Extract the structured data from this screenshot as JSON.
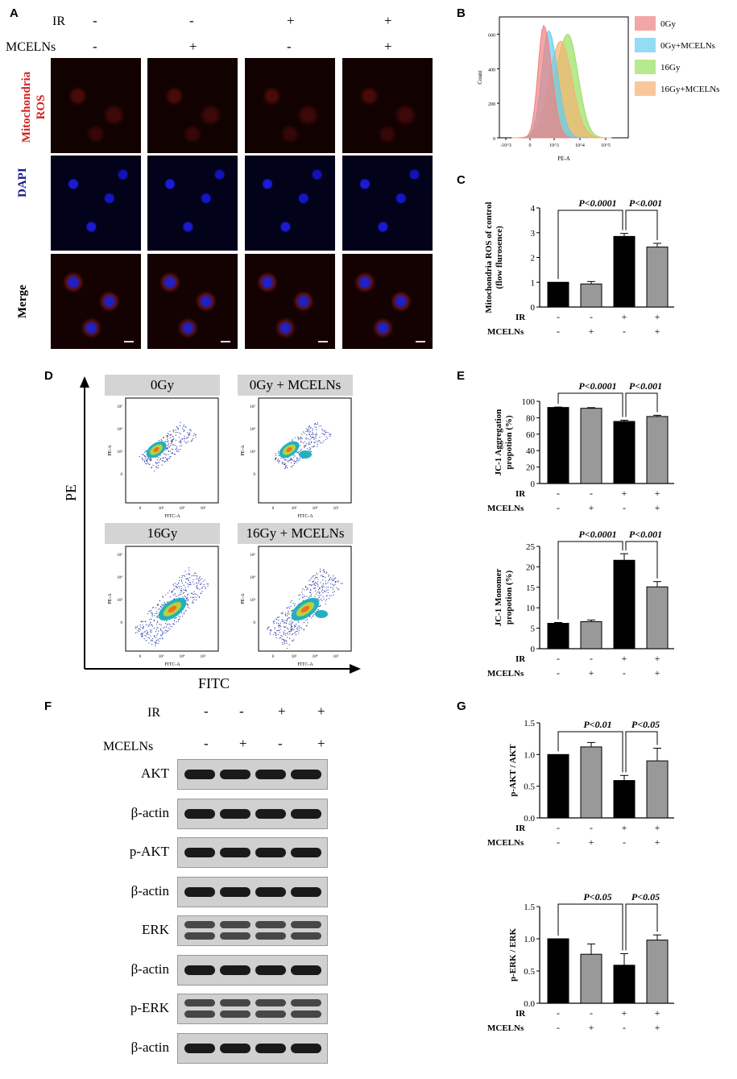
{
  "panels": {
    "A": "A",
    "B": "B",
    "C": "C",
    "D": "D",
    "E": "E",
    "F": "F",
    "G": "G"
  },
  "panelA": {
    "ir_label": "IR",
    "mcelns_label": "MCELNs",
    "ir_values": [
      "-",
      "-",
      "+",
      "+"
    ],
    "mcelns_values": [
      "-",
      "+",
      "-",
      "+"
    ],
    "row_labels": [
      "Mitochondria\nROS",
      "DAPI",
      "Merge"
    ],
    "row_label_colors": [
      "#d62020",
      "#1a1a8c",
      "#000000"
    ]
  },
  "panelD": {
    "titles": [
      "0Gy",
      "0Gy + MCELNs",
      "16Gy",
      "16Gy + MCELNs"
    ],
    "y_axis": "PE",
    "x_axis": "FITC",
    "plot_x_label": "FITC-A",
    "plot_y_label": "PE-A"
  },
  "panelF": {
    "ir_label": "IR",
    "mcelns_label": "MCELNs",
    "ir_values": [
      "-",
      "-",
      "+",
      "+"
    ],
    "mcelns_values": [
      "-",
      "+",
      "-",
      "+"
    ],
    "blots": [
      "AKT",
      "β-actin",
      "p-AKT",
      "β-actin",
      "ERK",
      "β-actin",
      "p-ERK",
      "β-actin"
    ]
  },
  "chart_data": [
    {
      "id": "B",
      "type": "area",
      "xlabel": "PE-A",
      "ylabel": "Count",
      "ylim": [
        0,
        700
      ],
      "yticks": [
        "0",
        "200",
        "400",
        "600"
      ],
      "xticks": [
        "-10^3",
        "0",
        "10^3",
        "10^4",
        "10^5"
      ],
      "legend_position": "right",
      "series": [
        {
          "name": "0Gy",
          "color": "#f08080"
        },
        {
          "name": "0Gy+MCELNs",
          "color": "#66ccee"
        },
        {
          "name": "16Gy",
          "color": "#99e060"
        },
        {
          "name": "16Gy+MCELNs",
          "color": "#f5b070"
        }
      ]
    },
    {
      "id": "C",
      "type": "bar",
      "ylabel": "Mitochondria ROS of control (flow flurosence)",
      "ylim": [
        0,
        4
      ],
      "yticks": [
        "0",
        "1",
        "2",
        "3",
        "4"
      ],
      "values": [
        1.0,
        0.93,
        2.85,
        2.42
      ],
      "errors": [
        0.0,
        0.1,
        0.12,
        0.15
      ],
      "colors": [
        "#000000",
        "#999999",
        "#000000",
        "#999999"
      ],
      "sig": [
        "P<0.0001",
        "P<0.001"
      ],
      "ir": [
        "-",
        "-",
        "+",
        "+"
      ],
      "mcelns": [
        "-",
        "+",
        "-",
        "+"
      ],
      "row_labels": [
        "IR",
        "MCELNs"
      ]
    },
    {
      "id": "E1",
      "type": "bar",
      "ylabel": "JC-1 Aggregation propotion (%)",
      "ylim": [
        0,
        100
      ],
      "yticks": [
        "0",
        "20",
        "40",
        "60",
        "80",
        "100"
      ],
      "values": [
        92.5,
        91.5,
        75.5,
        81.5
      ],
      "errors": [
        0.5,
        0.8,
        1.5,
        1.5
      ],
      "colors": [
        "#000000",
        "#999999",
        "#000000",
        "#999999"
      ],
      "sig": [
        "P<0.0001",
        "P<0.001"
      ],
      "ir": [
        "-",
        "-",
        "+",
        "+"
      ],
      "mcelns": [
        "-",
        "+",
        "-",
        "+"
      ],
      "row_labels": [
        "IR",
        "MCELNs"
      ]
    },
    {
      "id": "E2",
      "type": "bar",
      "ylabel": "JC-1 Monomer propotion (%)",
      "ylim": [
        0,
        25
      ],
      "yticks": [
        "0",
        "5",
        "10",
        "15",
        "20",
        "25"
      ],
      "values": [
        6.2,
        6.6,
        21.6,
        15.1
      ],
      "errors": [
        0.2,
        0.4,
        1.6,
        1.3
      ],
      "colors": [
        "#000000",
        "#999999",
        "#000000",
        "#999999"
      ],
      "sig": [
        "P<0.0001",
        "P<0.001"
      ],
      "ir": [
        "-",
        "-",
        "+",
        "+"
      ],
      "mcelns": [
        "-",
        "+",
        "-",
        "+"
      ],
      "row_labels": [
        "IR",
        "MCELNs"
      ]
    },
    {
      "id": "G1",
      "type": "bar",
      "ylabel": "p-AKT / AKT",
      "ylim": [
        0,
        1.5
      ],
      "yticks": [
        "0.0",
        "0.5",
        "1.0",
        "1.5"
      ],
      "values": [
        1.0,
        1.12,
        0.59,
        0.9
      ],
      "errors": [
        0.0,
        0.07,
        0.08,
        0.2
      ],
      "colors": [
        "#000000",
        "#999999",
        "#000000",
        "#999999"
      ],
      "sig": [
        "P<0.01",
        "P<0.05"
      ],
      "ir": [
        "-",
        "-",
        "+",
        "+"
      ],
      "mcelns": [
        "-",
        "+",
        "-",
        "+"
      ],
      "row_labels": [
        "IR",
        "MCELNs"
      ]
    },
    {
      "id": "G2",
      "type": "bar",
      "ylabel": "p-ERK / ERK",
      "ylim": [
        0,
        1.5
      ],
      "yticks": [
        "0.0",
        "0.5",
        "1.0",
        "1.5"
      ],
      "values": [
        1.0,
        0.76,
        0.59,
        0.98
      ],
      "errors": [
        0.0,
        0.16,
        0.18,
        0.08
      ],
      "colors": [
        "#000000",
        "#999999",
        "#000000",
        "#999999"
      ],
      "sig": [
        "P<0.05",
        "P<0.05"
      ],
      "ir": [
        "-",
        "-",
        "+",
        "+"
      ],
      "mcelns": [
        "-",
        "+",
        "-",
        "+"
      ],
      "row_labels": [
        "IR",
        "MCELNs"
      ]
    }
  ]
}
